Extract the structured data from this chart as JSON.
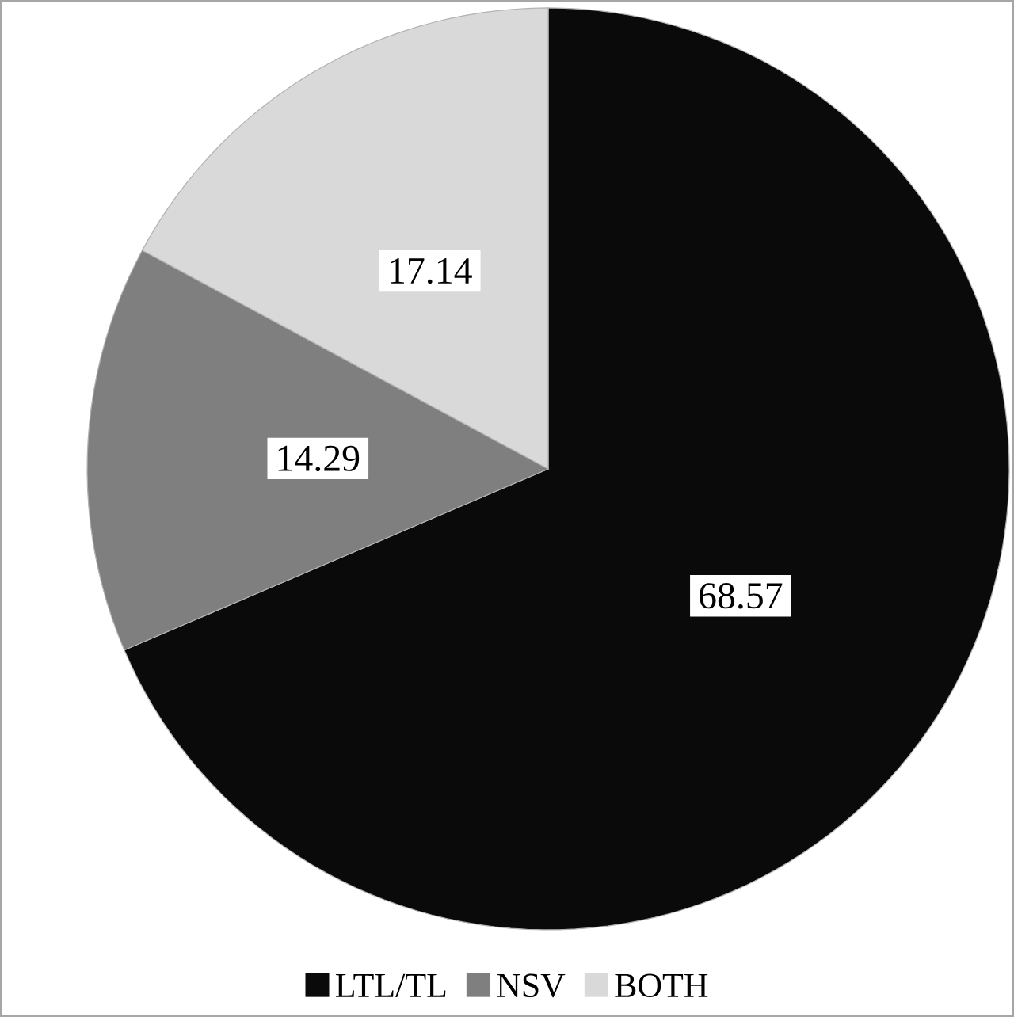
{
  "chart_data": {
    "type": "pie",
    "categories": [
      "LTL/TL",
      "NSV",
      "BOTH"
    ],
    "values": [
      68.57,
      14.29,
      17.14
    ],
    "colors": [
      "#0a0a0a",
      "#7f7f7f",
      "#d9d9d9"
    ],
    "data_labels": true,
    "legend": "bottom"
  }
}
